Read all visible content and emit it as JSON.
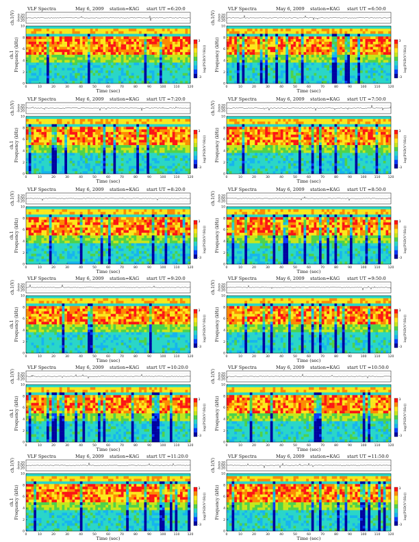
{
  "colors": {
    "scale": [
      "#0000a0",
      "#0a3cff",
      "#16b4f0",
      "#2ad6c8",
      "#4fd24a",
      "#c8e61a",
      "#ffe81a",
      "#ff8a00",
      "#ff1414"
    ],
    "line": "#222222"
  },
  "chart_data": [
    {
      "type": "heatmap",
      "title": "VLF Spectra",
      "date": "May 6, 2009",
      "station": "station=KAG",
      "start": "start UT =6:20:0",
      "xlabel": "Time (sec)",
      "ylabel_top": "ch.1(V)",
      "ylabel_channel": "ch.1",
      "ylabel_freq": "Frequency (kHz)",
      "colorbar_label": "log(PSD(V²/Hz))",
      "x_ticks": [
        "0",
        "10",
        "20",
        "30",
        "40",
        "50",
        "60",
        "70",
        "80",
        "90",
        "100",
        "110",
        "120"
      ],
      "y_ticks": [
        "0",
        "2",
        "4",
        "6",
        "8",
        "10"
      ],
      "top_ticks": [
        "0.20",
        "0.00",
        "-0.20"
      ],
      "xlim": [
        0,
        120
      ],
      "ylim": [
        0,
        10
      ],
      "colorbar_ticks": [
        "3",
        "-3"
      ]
    },
    {
      "type": "heatmap",
      "title": "VLF Spectra",
      "date": "May 6, 2009",
      "station": "station=KAG",
      "start": "start UT =6:50:0",
      "xlabel": "Time (sec)",
      "ylabel_top": "ch.1(V)",
      "ylabel_channel": "",
      "ylabel_freq": "Frequency (kHz)",
      "colorbar_label": "log(PSD(V²/Hz))",
      "x_ticks": [
        "0",
        "10",
        "20",
        "30",
        "40",
        "50",
        "60",
        "70",
        "80",
        "90",
        "100",
        "110",
        "120"
      ],
      "y_ticks": [
        "0",
        "2",
        "4",
        "6",
        "8",
        "10"
      ],
      "top_ticks": [
        "0.20",
        "0.00",
        "-0.20"
      ],
      "xlim": [
        0,
        120
      ],
      "ylim": [
        0,
        10
      ],
      "colorbar_ticks": [
        "3",
        "-3"
      ]
    },
    {
      "type": "heatmap",
      "title": "VLF Spectra",
      "date": "May 6, 2009",
      "station": "station=KAG",
      "start": "start UT =7:20:0",
      "xlabel": "Time (sec)",
      "ylabel_top": "ch.1(V)",
      "ylabel_channel": "ch.1",
      "ylabel_freq": "Frequency (kHz)",
      "colorbar_label": "log(PSD(V²/Hz))",
      "x_ticks": [
        "0",
        "10",
        "20",
        "30",
        "40",
        "50",
        "60",
        "70",
        "80",
        "90",
        "100",
        "110",
        "120"
      ],
      "y_ticks": [
        "0",
        "2",
        "4",
        "6",
        "8",
        "10"
      ],
      "top_ticks": [
        "0.20",
        "0.00",
        "-0.20"
      ],
      "xlim": [
        0,
        120
      ],
      "ylim": [
        0,
        10
      ],
      "colorbar_ticks": [
        "3",
        "-3"
      ]
    },
    {
      "type": "heatmap",
      "title": "VLF Spectra",
      "date": "May 6, 2009",
      "station": "station=KAG",
      "start": "start UT =7:50:0",
      "xlabel": "Time (sec)",
      "ylabel_top": "ch.1(V)",
      "ylabel_channel": "",
      "ylabel_freq": "Frequency (kHz)",
      "colorbar_label": "log(PSD(V²/Hz))",
      "x_ticks": [
        "0",
        "10",
        "20",
        "30",
        "40",
        "50",
        "60",
        "70",
        "80",
        "90",
        "100",
        "110",
        "120"
      ],
      "y_ticks": [
        "0",
        "2",
        "4",
        "6",
        "8",
        "10"
      ],
      "top_ticks": [
        "0.20",
        "0.00",
        "-0.20"
      ],
      "xlim": [
        0,
        120
      ],
      "ylim": [
        0,
        10
      ],
      "colorbar_ticks": [
        "3",
        "-3"
      ]
    },
    {
      "type": "heatmap",
      "title": "VLF Spectra",
      "date": "May 6, 2009",
      "station": "station=KAG",
      "start": "start UT =8:20:0",
      "xlabel": "Time (sec)",
      "ylabel_top": "ch.1(V)",
      "ylabel_channel": "ch.1",
      "ylabel_freq": "Frequency (kHz)",
      "colorbar_label": "log(PSD(V²/Hz))",
      "x_ticks": [
        "0",
        "10",
        "20",
        "30",
        "40",
        "50",
        "60",
        "70",
        "80",
        "90",
        "100",
        "110",
        "120"
      ],
      "y_ticks": [
        "0",
        "2",
        "4",
        "6",
        "8",
        "10"
      ],
      "top_ticks": [
        "0.20",
        "0.00",
        "-0.20"
      ],
      "xlim": [
        0,
        120
      ],
      "ylim": [
        0,
        10
      ],
      "colorbar_ticks": [
        "3",
        "-3"
      ]
    },
    {
      "type": "heatmap",
      "title": "VLF Spectra",
      "date": "May 6, 2009",
      "station": "station=KAG",
      "start": "start UT =8:50:0",
      "xlabel": "Time (sec)",
      "ylabel_top": "ch.1(V)",
      "ylabel_channel": "",
      "ylabel_freq": "Frequency (kHz)",
      "colorbar_label": "log(PSD(V²/Hz))",
      "x_ticks": [
        "0",
        "10",
        "20",
        "30",
        "40",
        "50",
        "60",
        "70",
        "80",
        "90",
        "100",
        "110",
        "120"
      ],
      "y_ticks": [
        "0",
        "2",
        "4",
        "6",
        "8",
        "10"
      ],
      "top_ticks": [
        "0.20",
        "0.00",
        "-0.20"
      ],
      "xlim": [
        0,
        120
      ],
      "ylim": [
        0,
        10
      ],
      "colorbar_ticks": [
        "3",
        "-3"
      ]
    },
    {
      "type": "heatmap",
      "title": "VLF Spectra",
      "date": "May 6, 2009",
      "station": "station=KAG",
      "start": "start UT =9:20:0",
      "xlabel": "Time (sec)",
      "ylabel_top": "ch.1(V)",
      "ylabel_channel": "ch.1",
      "ylabel_freq": "Frequency (kHz)",
      "colorbar_label": "log(PSD(V²/Hz))",
      "x_ticks": [
        "0",
        "10",
        "20",
        "30",
        "40",
        "50",
        "60",
        "70",
        "80",
        "90",
        "100",
        "110",
        "120"
      ],
      "y_ticks": [
        "0",
        "2",
        "4",
        "6",
        "8",
        "10"
      ],
      "top_ticks": [
        "0.20",
        "0.00",
        "-0.20"
      ],
      "xlim": [
        0,
        120
      ],
      "ylim": [
        0,
        10
      ],
      "colorbar_ticks": [
        "3",
        "-3"
      ]
    },
    {
      "type": "heatmap",
      "title": "VLF Spectra",
      "date": "May 6, 2009",
      "station": "station=KAG",
      "start": "start UT =9:50:0",
      "xlabel": "Time (sec)",
      "ylabel_top": "ch.1(V)",
      "ylabel_channel": "",
      "ylabel_freq": "Frequency (kHz)",
      "colorbar_label": "log(PSD(V²/Hz))",
      "x_ticks": [
        "0",
        "10",
        "20",
        "30",
        "40",
        "50",
        "60",
        "70",
        "80",
        "90",
        "100",
        "110",
        "120"
      ],
      "y_ticks": [
        "0",
        "2",
        "4",
        "6",
        "8",
        "10"
      ],
      "top_ticks": [
        "0.20",
        "0.00",
        "-0.20"
      ],
      "xlim": [
        0,
        120
      ],
      "ylim": [
        0,
        10
      ],
      "colorbar_ticks": [
        "3",
        "-3"
      ]
    },
    {
      "type": "heatmap",
      "title": "VLF Spectra",
      "date": "May 6, 2009",
      "station": "station=KAG",
      "start": "start UT =10:20:0",
      "xlabel": "Time (sec)",
      "ylabel_top": "ch.1(V)",
      "ylabel_channel": "ch.1",
      "ylabel_freq": "Frequency (kHz)",
      "colorbar_label": "log(PSD(V²/Hz))",
      "x_ticks": [
        "0",
        "10",
        "20",
        "30",
        "40",
        "50",
        "60",
        "70",
        "80",
        "90",
        "100",
        "110",
        "120"
      ],
      "y_ticks": [
        "0",
        "2",
        "4",
        "6",
        "8",
        "10"
      ],
      "top_ticks": [
        "0.20",
        "0.00",
        "-0.20"
      ],
      "xlim": [
        0,
        120
      ],
      "ylim": [
        0,
        10
      ],
      "colorbar_ticks": [
        "3",
        "-3"
      ]
    },
    {
      "type": "heatmap",
      "title": "VLF Spectra",
      "date": "May 6, 2009",
      "station": "station=KAG",
      "start": "start UT =10:50:0",
      "xlabel": "Time (sec)",
      "ylabel_top": "ch.1(V)",
      "ylabel_channel": "",
      "ylabel_freq": "Frequency (kHz)",
      "colorbar_label": "log(PSD(V²/Hz))",
      "x_ticks": [
        "0",
        "10",
        "20",
        "30",
        "40",
        "50",
        "60",
        "70",
        "80",
        "90",
        "100",
        "110",
        "120"
      ],
      "y_ticks": [
        "0",
        "2",
        "4",
        "6",
        "8",
        "10"
      ],
      "top_ticks": [
        "0.20",
        "0.00",
        "-0.20"
      ],
      "xlim": [
        0,
        120
      ],
      "ylim": [
        0,
        10
      ],
      "colorbar_ticks": [
        "3",
        "-3"
      ]
    },
    {
      "type": "heatmap",
      "title": "VLF Spectra",
      "date": "May 6, 2009",
      "station": "station=KAG",
      "start": "start UT =11:20:0",
      "xlabel": "Time (sec)",
      "ylabel_top": "ch.1(V)",
      "ylabel_channel": "ch.1",
      "ylabel_freq": "Frequency (kHz)",
      "colorbar_label": "log(PSD(V²/Hz))",
      "x_ticks": [
        "0",
        "10",
        "20",
        "30",
        "40",
        "50",
        "60",
        "70",
        "80",
        "90",
        "100",
        "110",
        "120"
      ],
      "y_ticks": [
        "0",
        "2",
        "4",
        "6",
        "8",
        "10"
      ],
      "top_ticks": [
        "0.20",
        "0.00",
        "-0.20"
      ],
      "xlim": [
        0,
        120
      ],
      "ylim": [
        0,
        10
      ],
      "colorbar_ticks": [
        "3",
        "-3"
      ]
    },
    {
      "type": "heatmap",
      "title": "VLF Spectra",
      "date": "May 6, 2009",
      "station": "station=KAG",
      "start": "start UT =11:50:0",
      "xlabel": "Time (sec)",
      "ylabel_top": "ch.1(V)",
      "ylabel_channel": "",
      "ylabel_freq": "Frequency (kHz)",
      "colorbar_label": "log(PSD(V²/Hz))",
      "x_ticks": [
        "0",
        "10",
        "20",
        "30",
        "40",
        "50",
        "60",
        "70",
        "80",
        "90",
        "100",
        "110",
        "120"
      ],
      "y_ticks": [
        "0",
        "2",
        "4",
        "6",
        "8",
        "10"
      ],
      "top_ticks": [
        "0.20",
        "0.00",
        "-0.20"
      ],
      "xlim": [
        0,
        120
      ],
      "ylim": [
        0,
        10
      ],
      "colorbar_ticks": [
        "3",
        "-3"
      ]
    }
  ]
}
